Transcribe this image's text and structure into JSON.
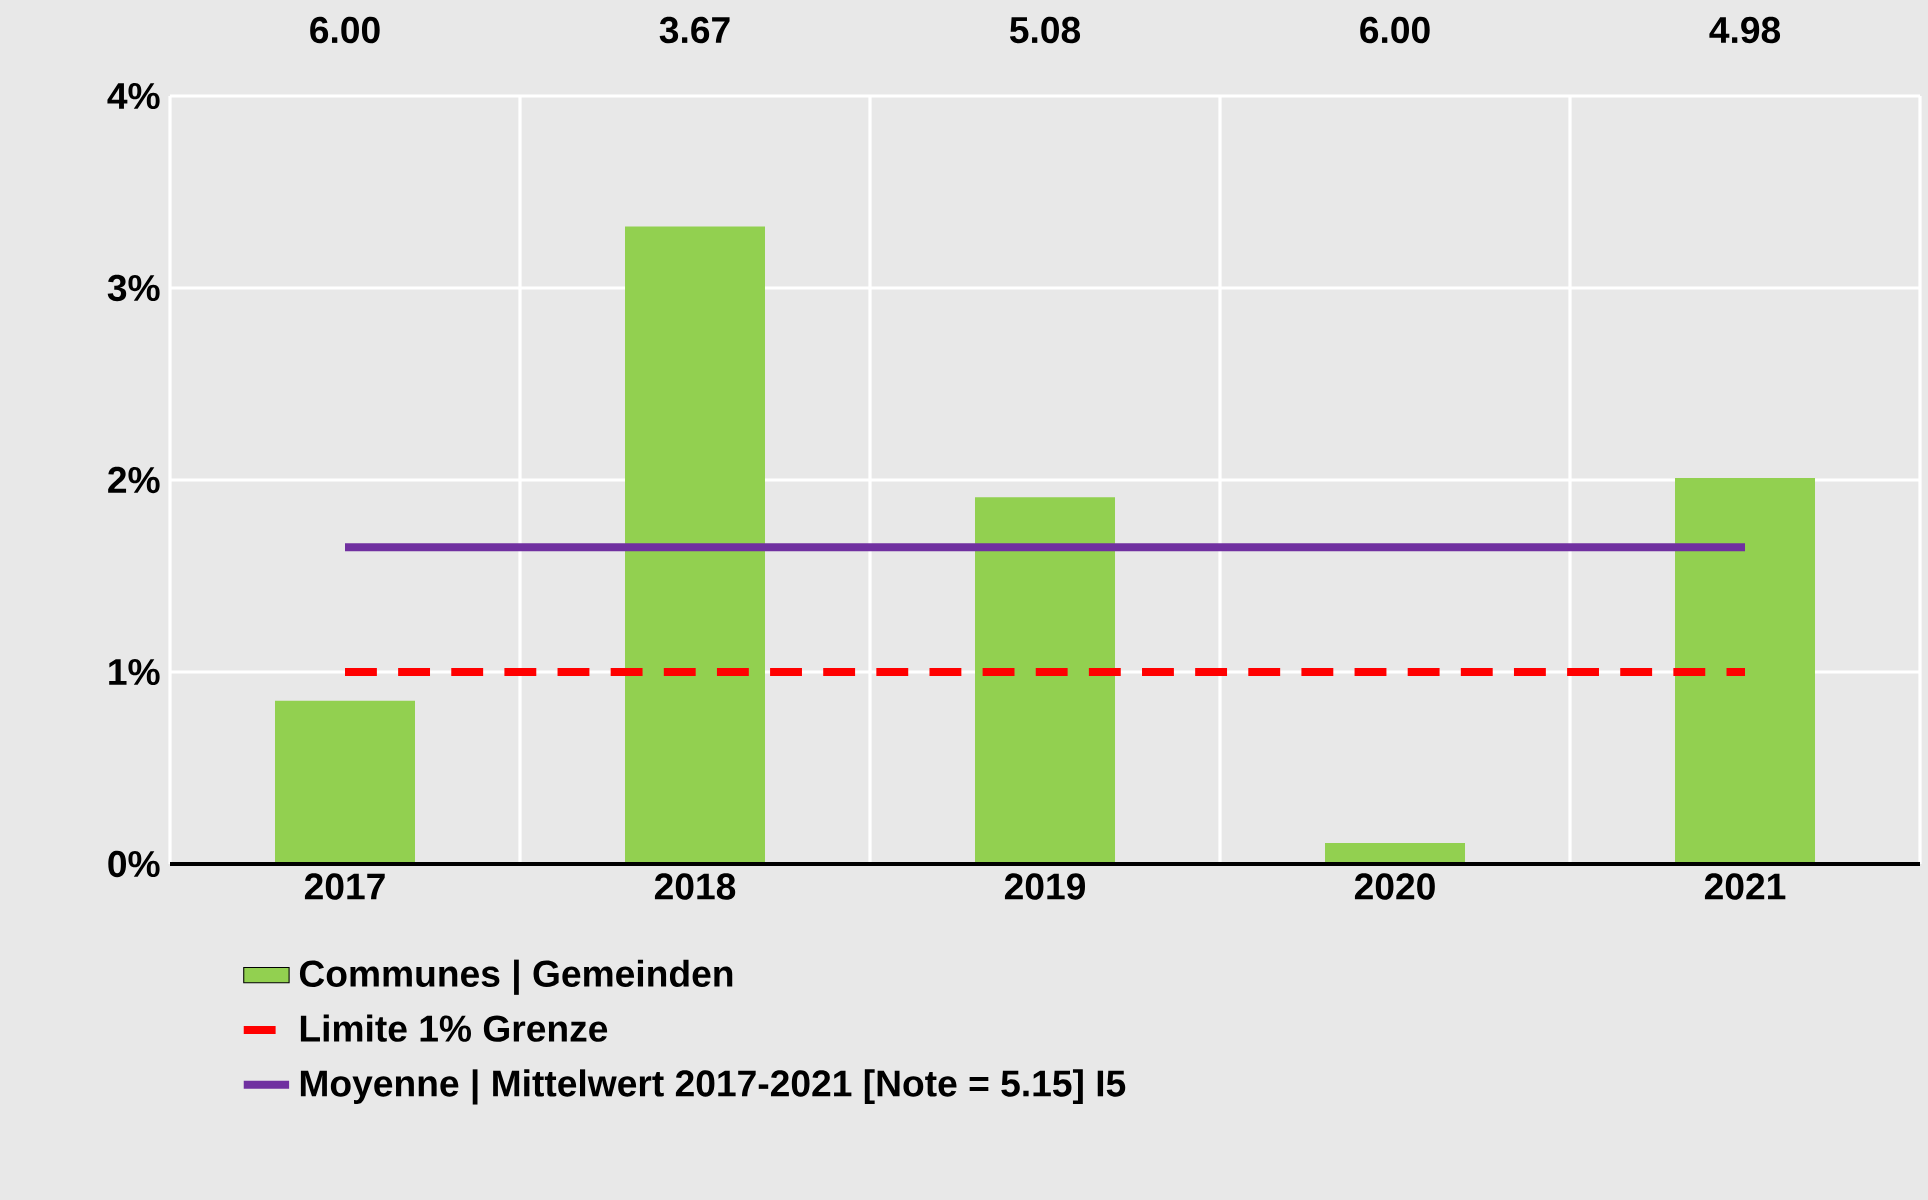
{
  "chart_data": {
    "type": "bar",
    "categories": [
      "2017",
      "2018",
      "2019",
      "2020",
      "2021"
    ],
    "series": [
      {
        "name": "Communes | Gemeinden",
        "color": "#92d050",
        "values": [
          0.85,
          3.32,
          1.91,
          0.11,
          2.01
        ]
      },
      {
        "name": "Limite 1% Grenze",
        "type": "line",
        "line_style": "dashed",
        "color": "#ff0000",
        "values": [
          1,
          1,
          1,
          1,
          1
        ]
      },
      {
        "name": "Moyenne | Mittelwert 2017-2021 [Note = 5.15] I5",
        "type": "line",
        "line_style": "solid",
        "color": "#7030a0",
        "values": [
          1.65,
          1.65,
          1.65,
          1.65,
          1.65
        ]
      }
    ],
    "ylim": [
      0,
      4
    ],
    "yticks": [
      {
        "value": 0,
        "label": "0%"
      },
      {
        "value": 1,
        "label": "1%"
      },
      {
        "value": 2,
        "label": "2%"
      },
      {
        "value": 3,
        "label": "3%"
      },
      {
        "value": 4,
        "label": "4%"
      }
    ],
    "annotations": [
      "6.00",
      "3.67",
      "5.08",
      "6.00",
      "4.98"
    ],
    "grid": true,
    "legend": "bottom",
    "marker": "none"
  }
}
